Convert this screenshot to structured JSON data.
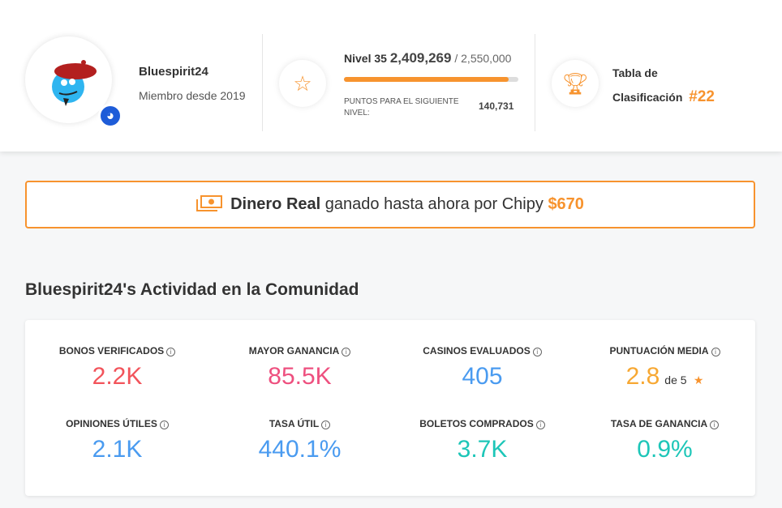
{
  "profile": {
    "username": "Bluespirit24",
    "member_since": "Miembro desde 2019"
  },
  "level": {
    "label": "Nivel 35",
    "points": "2,409,269",
    "separator": "/",
    "target": "2,550,000",
    "progress": 0.945,
    "next_label": "PUNTOS PARA EL SIGUIENTE NIVEL:",
    "next_value": "140,731"
  },
  "leaderboard": {
    "label": "Tabla de Clasificación",
    "rank": "#22"
  },
  "banner": {
    "bold": "Dinero Real",
    "text": "ganado hasta ahora por Chipy",
    "amount": "$670"
  },
  "activity": {
    "title": "Bluespirit24's Actividad en la Comunidad",
    "stats": [
      {
        "label": "BONOS VERIFICADOS",
        "value": "2.2K",
        "color": "#f2545b"
      },
      {
        "label": "MAYOR GANANCIA",
        "value": "85.5K",
        "color": "#ee507f"
      },
      {
        "label": "CASINOS EVALUADOS",
        "value": "405",
        "color": "#4a9bf0"
      },
      {
        "label": "PUNTUACIÓN MEDIA",
        "value": "2.8",
        "suffix": "de 5",
        "color": "#f7a833"
      },
      {
        "label": "OPINIONES ÚTILES",
        "value": "2.1K",
        "color": "#4a9bf0"
      },
      {
        "label": "TASA ÚTIL",
        "value": "440.1%",
        "color": "#4a9bf0"
      },
      {
        "label": "BOLETOS COMPRADOS",
        "value": "3.7K",
        "color": "#1dc6b8"
      },
      {
        "label": "TASA DE GANANCIA",
        "value": "0.9%",
        "color": "#1dc6b8"
      }
    ]
  }
}
